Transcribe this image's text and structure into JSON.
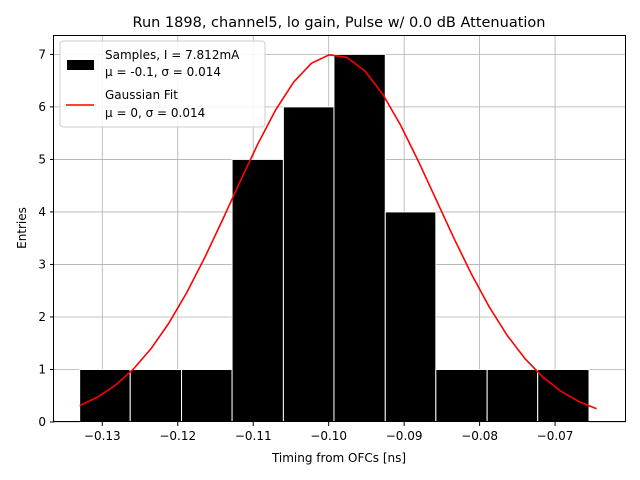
{
  "chart_data": {
    "type": "histogram",
    "title": "Run 1898, channel5, lo gain, Pulse w/ 0.0 dB Attenuation",
    "xlabel": "Timing from OFCs [ns]",
    "ylabel": "Entries",
    "xlim": [
      -0.1364,
      -0.0606
    ],
    "ylim": [
      0,
      7.35
    ],
    "grid": true,
    "legend_position": "top-left",
    "xticks": [
      -0.13,
      -0.12,
      -0.11,
      -0.1,
      -0.09,
      -0.08,
      -0.07
    ],
    "xtick_labels": [
      "−0.13",
      "−0.12",
      "−0.11",
      "−0.10",
      "−0.09",
      "−0.08",
      "−0.07"
    ],
    "yticks": [
      0,
      1,
      2,
      3,
      4,
      5,
      6,
      7
    ],
    "ytick_labels": [
      "0",
      "1",
      "2",
      "3",
      "4",
      "5",
      "6",
      "7"
    ],
    "histogram": {
      "name": "Samples, I = 7.812mA",
      "stats_label": "μ = -0.1, σ = 0.014",
      "color": "#000000",
      "edgecolor": "#ffffff",
      "bins": [
        {
          "left": -0.133,
          "right": -0.1263,
          "count": 1
        },
        {
          "left": -0.1263,
          "right": -0.1195,
          "count": 1
        },
        {
          "left": -0.1195,
          "right": -0.1128,
          "count": 1
        },
        {
          "left": -0.1128,
          "right": -0.106,
          "count": 5
        },
        {
          "left": -0.106,
          "right": -0.0993,
          "count": 6
        },
        {
          "left": -0.0993,
          "right": -0.0925,
          "count": 7
        },
        {
          "left": -0.0925,
          "right": -0.0858,
          "count": 4
        },
        {
          "left": -0.0858,
          "right": -0.079,
          "count": 1
        },
        {
          "left": -0.079,
          "right": -0.0723,
          "count": 1
        },
        {
          "left": -0.0723,
          "right": -0.0655,
          "count": 1
        }
      ]
    },
    "fit": {
      "name": "Gaussian Fit",
      "stats_label": "μ = 0, σ = 0.014",
      "color": "#ff0000",
      "amplitude": 7.0,
      "mean": -0.0993,
      "sigma": 0.0135,
      "x_range": [
        -0.133,
        -0.0645
      ],
      "n_points": 30
    }
  }
}
